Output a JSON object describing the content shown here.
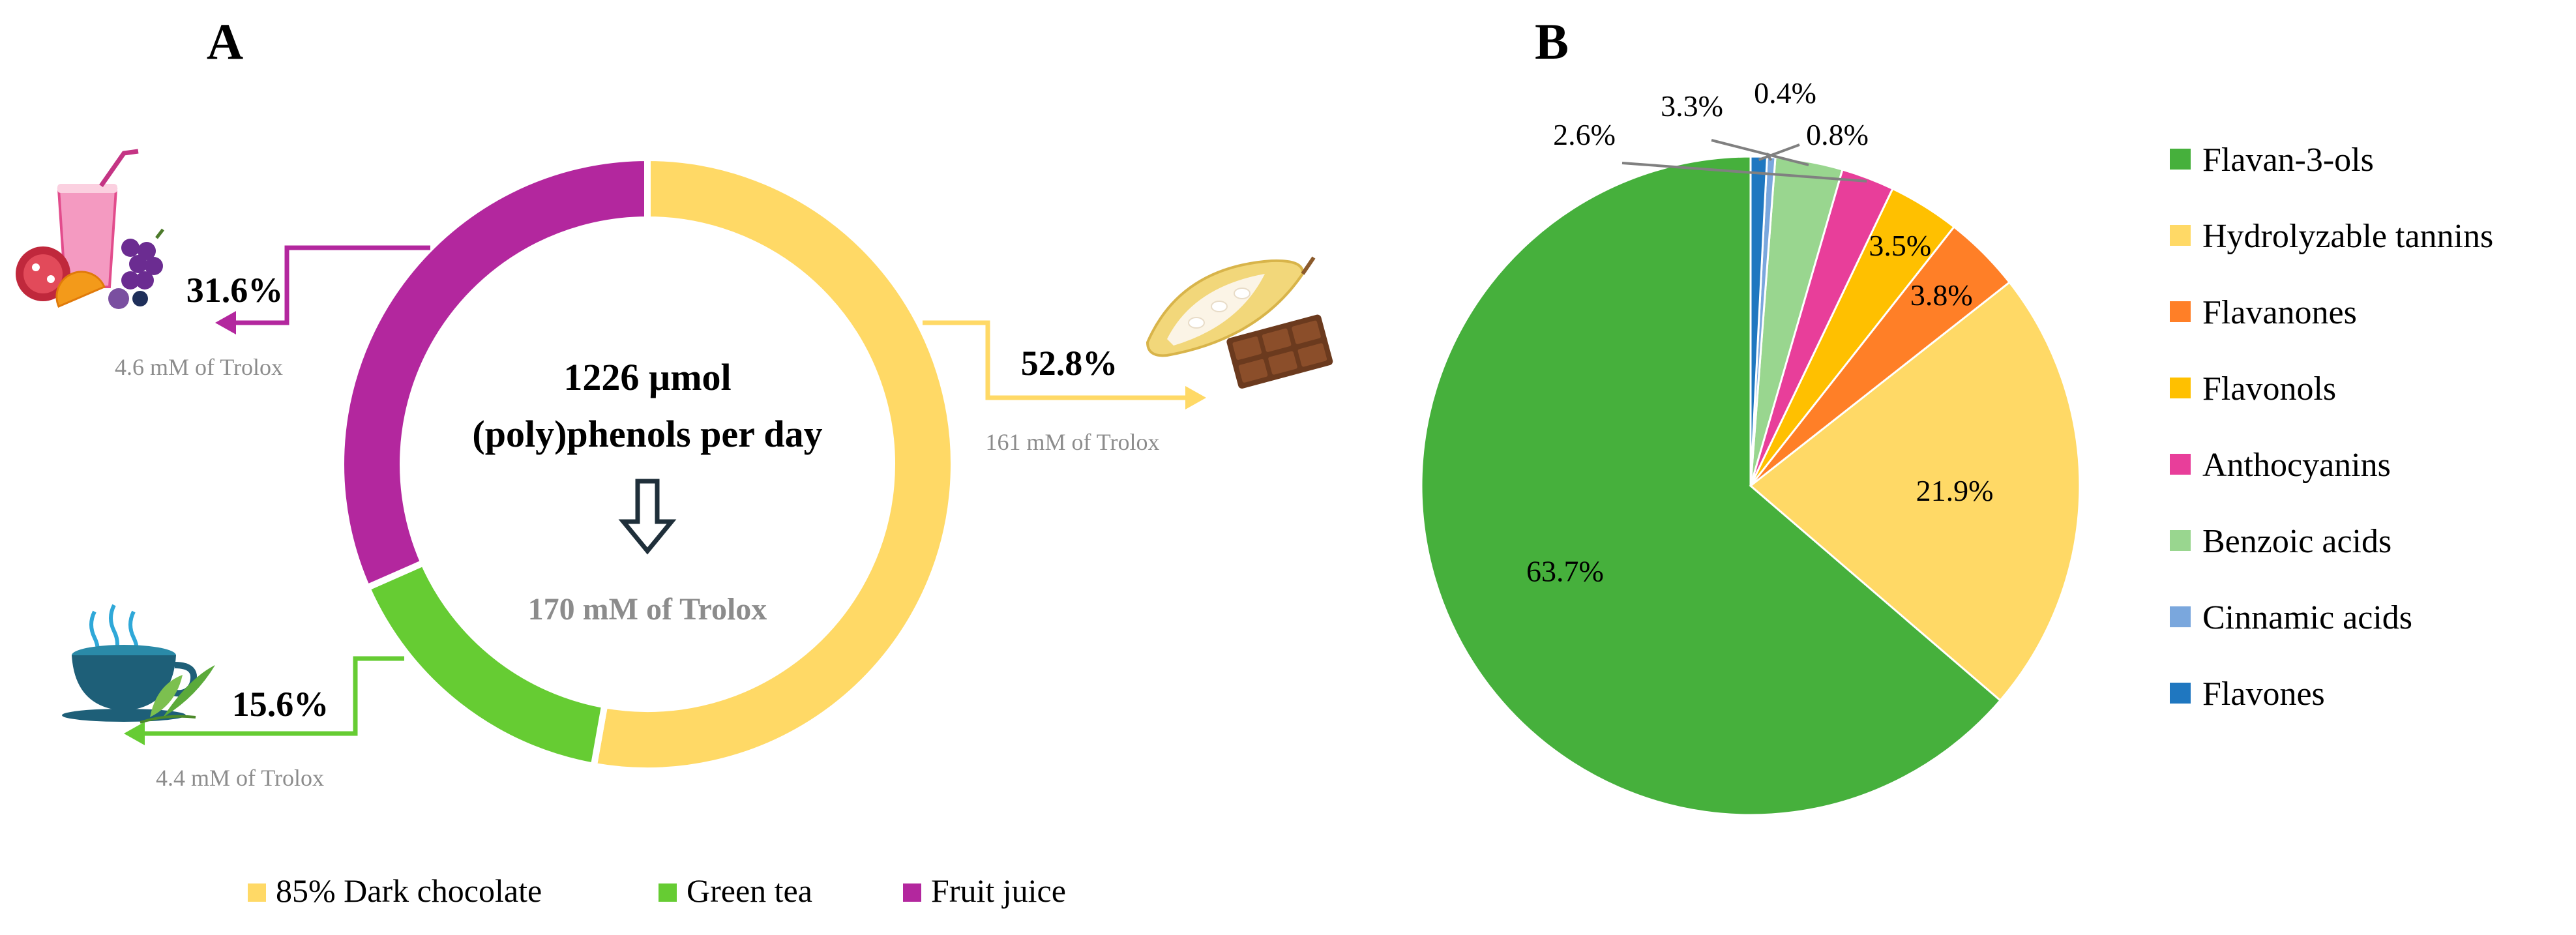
{
  "colors": {
    "chocolate": "#FFD966",
    "green_tea": "#66CC33",
    "fruit_juice": "#B3279E",
    "flavan3ols": "#46B03C",
    "hydrolyzable_tannins": "#FFD966",
    "flavanones": "#FF7F27",
    "flavonols": "#FFC000",
    "anthocyanins": "#E83E9A",
    "benzoic_acids": "#99D68F",
    "cinnamic_acids": "#7AA7DD",
    "flavones": "#1F77C0",
    "sub_label": "#8C8C8C",
    "arrow_dark": "#1F2F3A"
  },
  "chart_data": [
    {
      "type": "pie",
      "subtype": "donut",
      "panel_label": "A",
      "center_text_line1": "1226 µmol",
      "center_text_line2": "(poly)phenols per day",
      "center_sub": "170 mM of Trolox",
      "legend_position": "bottom",
      "slices": [
        {
          "key": "chocolate",
          "label": "85% Dark chocolate",
          "value": 52.8,
          "value_label": "52.8%",
          "sub_label": "161 mM of Trolox",
          "icon": "chocolate-icon"
        },
        {
          "key": "green_tea",
          "label": "Green tea",
          "value": 15.6,
          "value_label": "15.6%",
          "sub_label": "4.4 mM of Trolox",
          "icon": "tea-cup-icon"
        },
        {
          "key": "fruit_juice",
          "label": "Fruit juice",
          "value": 31.6,
          "value_label": "31.6%",
          "sub_label": "4.6 mM of Trolox",
          "icon": "fruit-juice-icon"
        }
      ]
    },
    {
      "type": "pie",
      "panel_label": "B",
      "legend_position": "right",
      "slices": [
        {
          "key": "flavan3ols",
          "label": "Flavan-3-ols",
          "value": 63.7,
          "value_label": "63.7%"
        },
        {
          "key": "hydrolyzable_tannins",
          "label": "Hydrolyzable tannins",
          "value": 21.9,
          "value_label": "21.9%"
        },
        {
          "key": "flavanones",
          "label": "Flavanones",
          "value": 3.8,
          "value_label": "3.8%"
        },
        {
          "key": "flavonols",
          "label": "Flavonols",
          "value": 3.5,
          "value_label": "3.5%"
        },
        {
          "key": "anthocyanins",
          "label": "Anthocyanins",
          "value": 2.6,
          "value_label": "2.6%"
        },
        {
          "key": "benzoic_acids",
          "label": "Benzoic acids",
          "value": 3.3,
          "value_label": "3.3%"
        },
        {
          "key": "cinnamic_acids",
          "label": "Cinnamic acids",
          "value": 0.4,
          "value_label": "0.4%"
        },
        {
          "key": "flavones",
          "label": "Flavones",
          "value": 0.8,
          "value_label": "0.8%"
        }
      ]
    }
  ]
}
